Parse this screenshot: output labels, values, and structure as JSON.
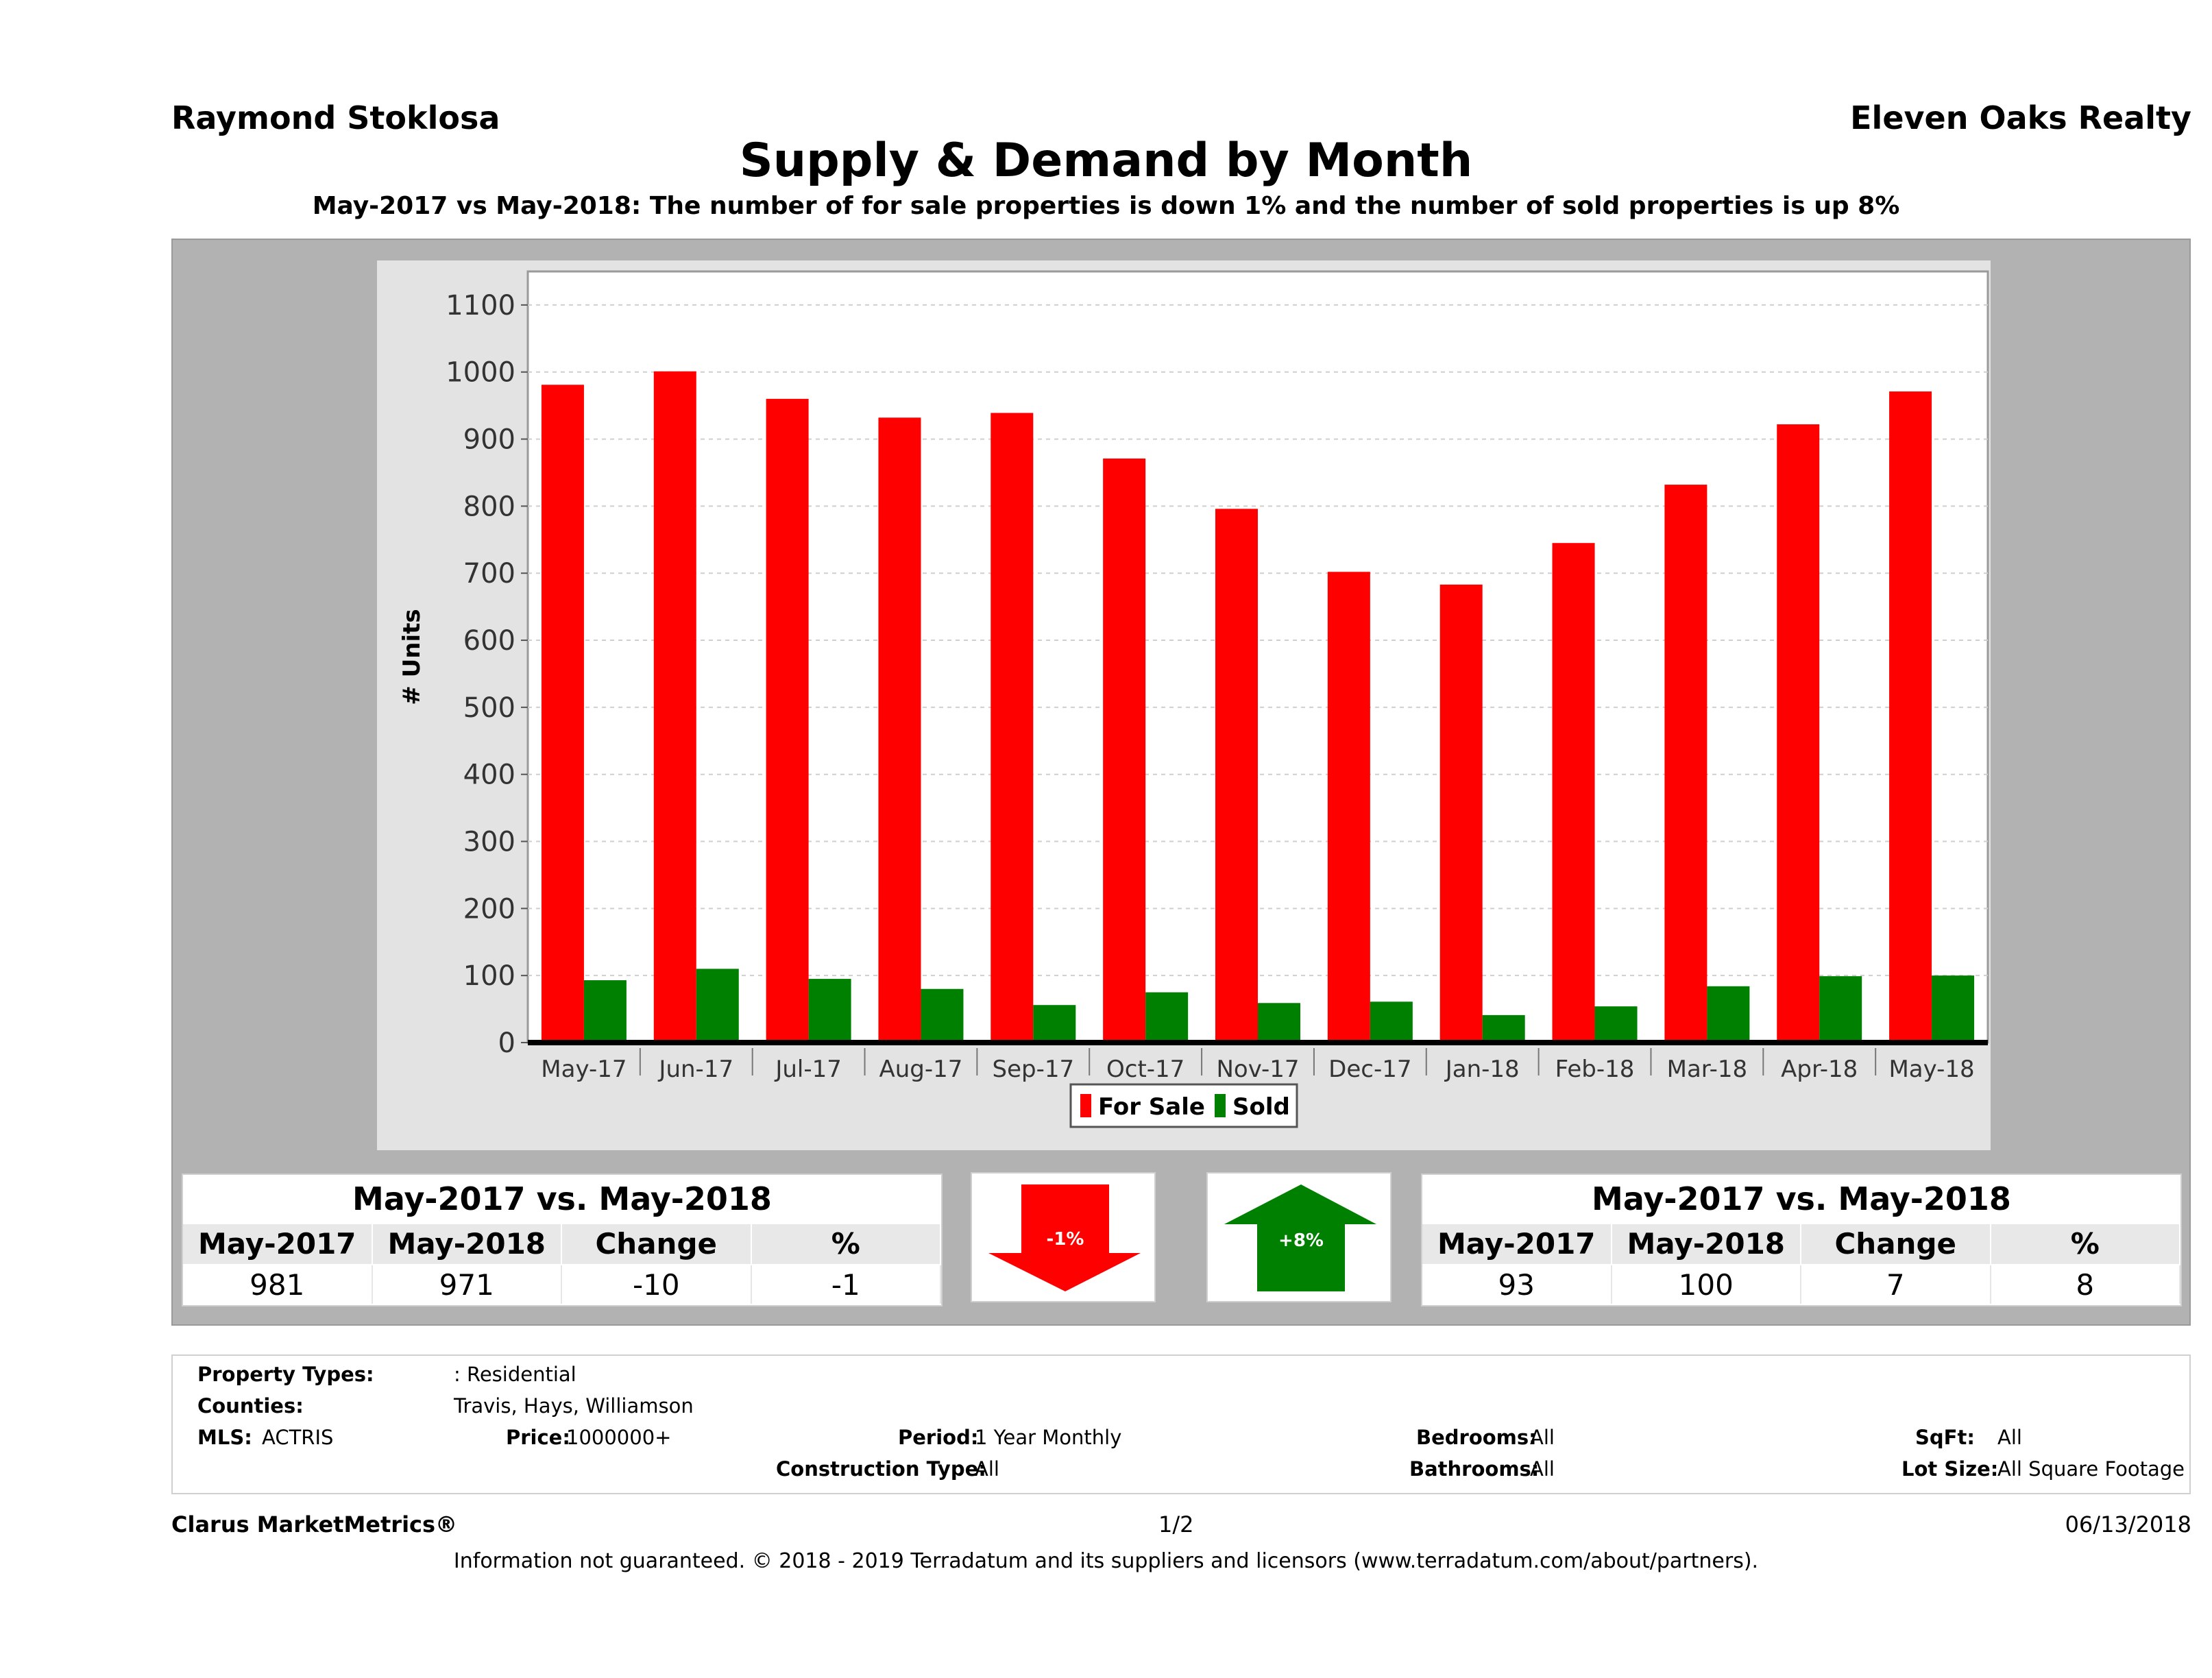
{
  "header": {
    "agent": "Raymond Stoklosa",
    "brokerage": "Eleven Oaks Realty",
    "title": "Supply & Demand by Month",
    "subtitle": "May-2017 vs May-2018: The number of for sale properties is down 1% and the number of sold properties is up 8%"
  },
  "chart_data": {
    "type": "bar",
    "ylabel": "# Units",
    "ylim": [
      0,
      1150
    ],
    "yticks": [
      0,
      100,
      200,
      300,
      400,
      500,
      600,
      700,
      800,
      900,
      1000,
      1100
    ],
    "grid": true,
    "legend_position": "bottom",
    "categories": [
      "May-17",
      "Jun-17",
      "Jul-17",
      "Aug-17",
      "Sep-17",
      "Oct-17",
      "Nov-17",
      "Dec-17",
      "Jan-18",
      "Feb-18",
      "Mar-18",
      "Apr-18",
      "May-18"
    ],
    "series": [
      {
        "name": "For Sale",
        "color": "#ff0000",
        "values": [
          981,
          1001,
          960,
          932,
          939,
          871,
          796,
          702,
          683,
          745,
          832,
          922,
          971
        ]
      },
      {
        "name": "Sold",
        "color": "#008000",
        "values": [
          93,
          110,
          95,
          80,
          56,
          75,
          59,
          61,
          41,
          54,
          84,
          99,
          100
        ]
      }
    ]
  },
  "for_sale_table": {
    "title": "May-2017 vs. May-2018",
    "headers": [
      "May-2017",
      "May-2018",
      "Change",
      "%"
    ],
    "values": [
      "981",
      "971",
      "-10",
      "-1"
    ]
  },
  "sold_table": {
    "title": "May-2017 vs. May-2018",
    "headers": [
      "May-2017",
      "May-2018",
      "Change",
      "%"
    ],
    "values": [
      "93",
      "100",
      "7",
      "8"
    ]
  },
  "arrows": {
    "down_label": "-1%",
    "up_label": "+8%",
    "down_color": "#ff0000",
    "up_color": "#008000"
  },
  "criteria": {
    "property_types_label": "Property Types:",
    "property_types_value": ": Residential",
    "counties_label": "Counties:",
    "counties_value": "Travis, Hays, Williamson",
    "mls_label": "MLS:",
    "mls_value": "ACTRIS",
    "price_label": "Price:",
    "price_value": "1000000+",
    "period_label": "Period:",
    "period_value": "1 Year Monthly",
    "construction_label": "Construction Type:",
    "construction_value": "All",
    "bedrooms_label": "Bedrooms:",
    "bedrooms_value": "All",
    "bathrooms_label": "Bathrooms:",
    "bathrooms_value": "All",
    "sqft_label": "SqFt:",
    "sqft_value": "All",
    "lot_label": "Lot Size:",
    "lot_value": "All Square Footage"
  },
  "footer": {
    "brand": "Clarus MarketMetrics®",
    "page": "1/2",
    "date": "06/13/2018",
    "disclaimer": "Information not guaranteed. © 2018 - 2019 Terradatum and its suppliers and licensors (www.terradatum.com/about/partners)."
  }
}
